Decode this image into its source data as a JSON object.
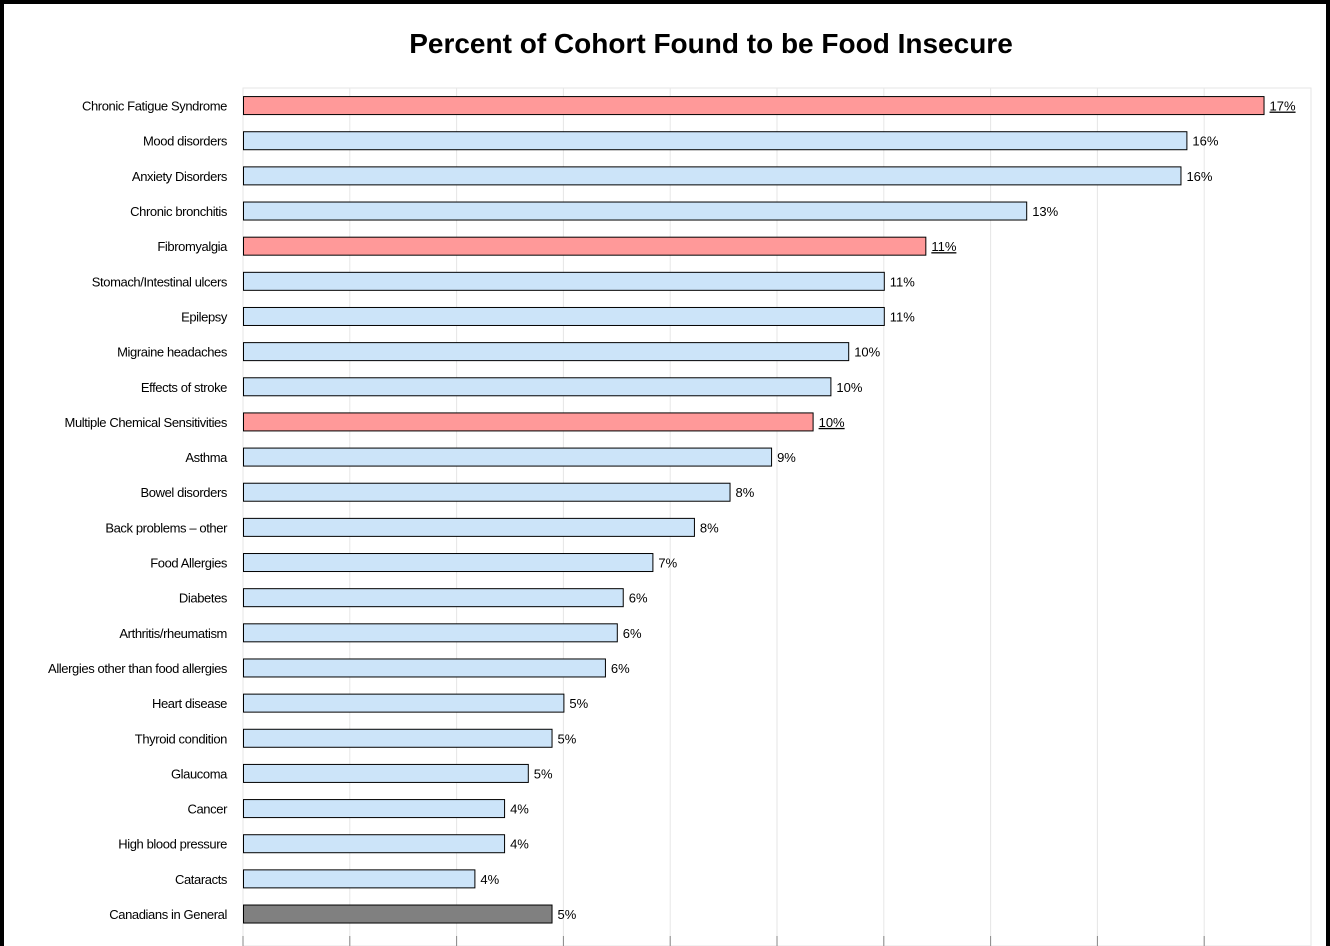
{
  "chart_data": {
    "type": "bar",
    "orientation": "horizontal",
    "title": "Percent of Cohort Found to be Food Insecure",
    "xlabel": "",
    "ylabel": "",
    "xlim": [
      0,
      0.18
    ],
    "grid": true,
    "legend": "none",
    "categories": [
      "Chronic Fatigue Syndrome",
      "Mood disorders",
      "Anxiety Disorders",
      "Chronic bronchitis",
      "Fibromyalgia",
      "Stomach/Intestinal ulcers",
      "Epilepsy",
      "Migraine headaches",
      "Effects of stroke",
      "Multiple Chemical Sensitivities",
      "Asthma",
      "Bowel disorders",
      "Back problems – other",
      "Food Allergies",
      "Diabetes",
      "Arthritis/rheumatism",
      "Allergies other than food allergies",
      "Heart disease",
      "Thyroid condition",
      "Glaucoma",
      "Cancer",
      "High blood pressure",
      "Cataracts",
      "Canadians in General"
    ],
    "values": [
      0.172,
      0.159,
      0.158,
      0.132,
      0.115,
      0.108,
      0.108,
      0.102,
      0.099,
      0.096,
      0.089,
      0.082,
      0.076,
      0.069,
      0.064,
      0.063,
      0.061,
      0.054,
      0.052,
      0.048,
      0.044,
      0.044,
      0.039,
      0.052
    ],
    "labels": [
      "17%",
      "16%",
      "16%",
      "13%",
      "11%",
      "11%",
      "11%",
      "10%",
      "10%",
      "10%",
      "9%",
      "8%",
      "8%",
      "7%",
      "6%",
      "6%",
      "6%",
      "5%",
      "5%",
      "5%",
      "4%",
      "4%",
      "4%",
      "5%"
    ],
    "highlight": [
      "highlight",
      "normal",
      "normal",
      "normal",
      "highlight",
      "normal",
      "normal",
      "normal",
      "normal",
      "highlight",
      "normal",
      "normal",
      "normal",
      "normal",
      "normal",
      "normal",
      "normal",
      "normal",
      "normal",
      "normal",
      "normal",
      "normal",
      "normal",
      "reference"
    ],
    "colors": {
      "normal": "#cce4f9",
      "highlight": "#ff9999",
      "reference": "#808080",
      "grid": "#e6e6e6",
      "bar_border": "#000000"
    }
  }
}
